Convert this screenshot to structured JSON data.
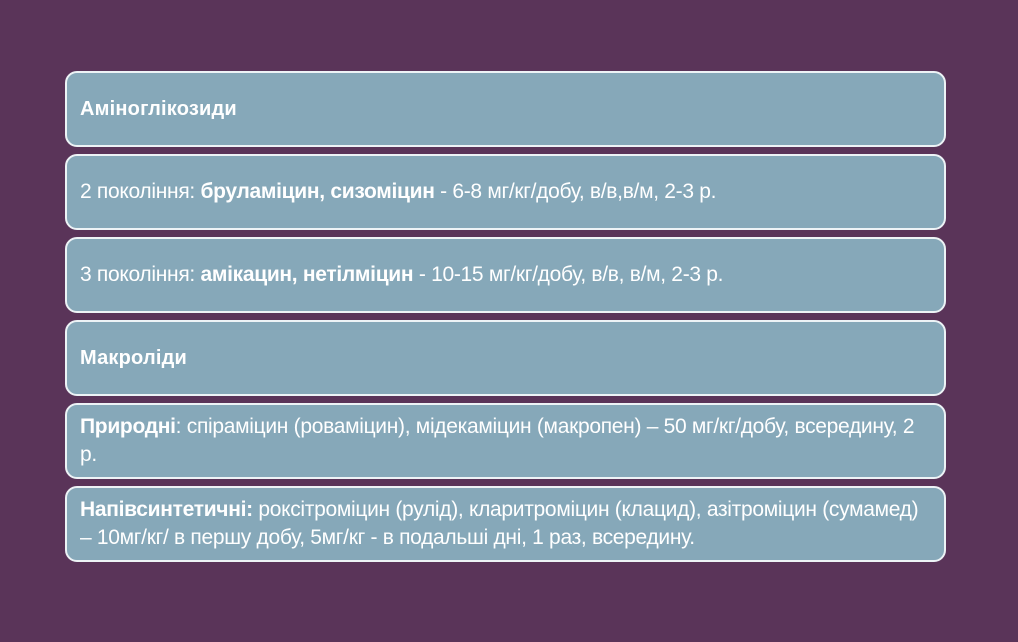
{
  "slide": {
    "colors": {
      "background": "#5a3459",
      "box_fill": "#86a8b9",
      "box_border": "#edf3f6",
      "text": "#ffffff"
    },
    "boxes": [
      {
        "id": "aminoglycosides-header",
        "segments": [
          {
            "text": "Аміноглікозиди",
            "bold": true
          }
        ]
      },
      {
        "id": "aminoglycosides-generation-2",
        "segments": [
          {
            "text": "2 покоління: ",
            "bold": false
          },
          {
            "text": "бруламіцин, сизоміцин",
            "bold": true
          },
          {
            "text": " - 6-8 мг/кг/добу, в/в,в/м, 2-3 р.",
            "bold": false
          }
        ]
      },
      {
        "id": "aminoglycosides-generation-3",
        "segments": [
          {
            "text": "3 покоління: ",
            "bold": false
          },
          {
            "text": "амікацин, нетілміцин",
            "bold": true
          },
          {
            "text": " - 10-15 мг/кг/добу, в/в, в/м, 2-3 р.",
            "bold": false
          }
        ]
      },
      {
        "id": "macrolides-header",
        "segments": [
          {
            "text": "Макроліди",
            "bold": true
          }
        ]
      },
      {
        "id": "macrolides-natural",
        "segments": [
          {
            "text": "Природні",
            "bold": true
          },
          {
            "text": ": спіраміцин (роваміцин), мідекаміцин (макропен) – 50 мг/кг/добу, всередину, 2 р.",
            "bold": false
          }
        ]
      },
      {
        "id": "macrolides-semisynthetic",
        "segments": [
          {
            "text": "Напівсинтетичні:",
            "bold": true
          },
          {
            "text": " роксітроміцин (рулід), кларитроміцин (клацид), азітроміцин (сумамед) – 10мг/кг/ в першу добу, 5мг/кг - в подальші дні, 1 раз, всередину.",
            "bold": false
          }
        ]
      }
    ]
  }
}
